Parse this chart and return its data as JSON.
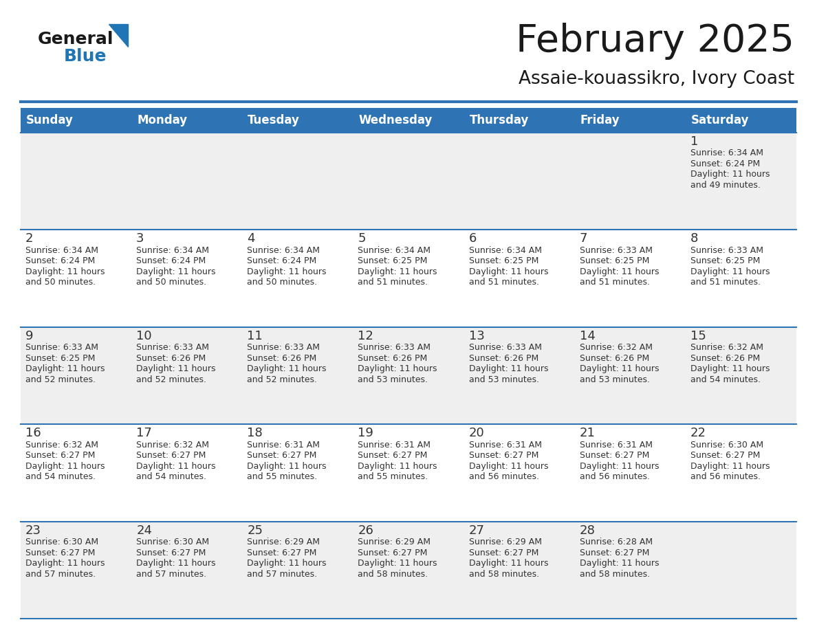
{
  "title": "February 2025",
  "subtitle": "Assaie-kouassikro, Ivory Coast",
  "header_bg_color": "#2E74B5",
  "header_text_color": "#FFFFFF",
  "day_names": [
    "Sunday",
    "Monday",
    "Tuesday",
    "Wednesday",
    "Thursday",
    "Friday",
    "Saturday"
  ],
  "grid_line_color": "#2E74B5",
  "cell_bg_white": "#FFFFFF",
  "cell_bg_gray": "#EFEFEF",
  "day_num_color": "#333333",
  "info_text_color": "#333333",
  "title_color": "#1a1a1a",
  "subtitle_color": "#1a1a1a",
  "logo_color_general": "#1a1a1a",
  "logo_color_blue": "#2076B4",
  "logo_triangle_color": "#2076B4",
  "calendar_data": [
    [
      null,
      null,
      null,
      null,
      null,
      null,
      {
        "day": 1,
        "sunrise": "6:34 AM",
        "sunset": "6:24 PM",
        "dl1": "Daylight: 11 hours",
        "dl2": "and 49 minutes."
      }
    ],
    [
      {
        "day": 2,
        "sunrise": "6:34 AM",
        "sunset": "6:24 PM",
        "dl1": "Daylight: 11 hours",
        "dl2": "and 50 minutes."
      },
      {
        "day": 3,
        "sunrise": "6:34 AM",
        "sunset": "6:24 PM",
        "dl1": "Daylight: 11 hours",
        "dl2": "and 50 minutes."
      },
      {
        "day": 4,
        "sunrise": "6:34 AM",
        "sunset": "6:24 PM",
        "dl1": "Daylight: 11 hours",
        "dl2": "and 50 minutes."
      },
      {
        "day": 5,
        "sunrise": "6:34 AM",
        "sunset": "6:25 PM",
        "dl1": "Daylight: 11 hours",
        "dl2": "and 51 minutes."
      },
      {
        "day": 6,
        "sunrise": "6:34 AM",
        "sunset": "6:25 PM",
        "dl1": "Daylight: 11 hours",
        "dl2": "and 51 minutes."
      },
      {
        "day": 7,
        "sunrise": "6:33 AM",
        "sunset": "6:25 PM",
        "dl1": "Daylight: 11 hours",
        "dl2": "and 51 minutes."
      },
      {
        "day": 8,
        "sunrise": "6:33 AM",
        "sunset": "6:25 PM",
        "dl1": "Daylight: 11 hours",
        "dl2": "and 51 minutes."
      }
    ],
    [
      {
        "day": 9,
        "sunrise": "6:33 AM",
        "sunset": "6:25 PM",
        "dl1": "Daylight: 11 hours",
        "dl2": "and 52 minutes."
      },
      {
        "day": 10,
        "sunrise": "6:33 AM",
        "sunset": "6:26 PM",
        "dl1": "Daylight: 11 hours",
        "dl2": "and 52 minutes."
      },
      {
        "day": 11,
        "sunrise": "6:33 AM",
        "sunset": "6:26 PM",
        "dl1": "Daylight: 11 hours",
        "dl2": "and 52 minutes."
      },
      {
        "day": 12,
        "sunrise": "6:33 AM",
        "sunset": "6:26 PM",
        "dl1": "Daylight: 11 hours",
        "dl2": "and 53 minutes."
      },
      {
        "day": 13,
        "sunrise": "6:33 AM",
        "sunset": "6:26 PM",
        "dl1": "Daylight: 11 hours",
        "dl2": "and 53 minutes."
      },
      {
        "day": 14,
        "sunrise": "6:32 AM",
        "sunset": "6:26 PM",
        "dl1": "Daylight: 11 hours",
        "dl2": "and 53 minutes."
      },
      {
        "day": 15,
        "sunrise": "6:32 AM",
        "sunset": "6:26 PM",
        "dl1": "Daylight: 11 hours",
        "dl2": "and 54 minutes."
      }
    ],
    [
      {
        "day": 16,
        "sunrise": "6:32 AM",
        "sunset": "6:27 PM",
        "dl1": "Daylight: 11 hours",
        "dl2": "and 54 minutes."
      },
      {
        "day": 17,
        "sunrise": "6:32 AM",
        "sunset": "6:27 PM",
        "dl1": "Daylight: 11 hours",
        "dl2": "and 54 minutes."
      },
      {
        "day": 18,
        "sunrise": "6:31 AM",
        "sunset": "6:27 PM",
        "dl1": "Daylight: 11 hours",
        "dl2": "and 55 minutes."
      },
      {
        "day": 19,
        "sunrise": "6:31 AM",
        "sunset": "6:27 PM",
        "dl1": "Daylight: 11 hours",
        "dl2": "and 55 minutes."
      },
      {
        "day": 20,
        "sunrise": "6:31 AM",
        "sunset": "6:27 PM",
        "dl1": "Daylight: 11 hours",
        "dl2": "and 56 minutes."
      },
      {
        "day": 21,
        "sunrise": "6:31 AM",
        "sunset": "6:27 PM",
        "dl1": "Daylight: 11 hours",
        "dl2": "and 56 minutes."
      },
      {
        "day": 22,
        "sunrise": "6:30 AM",
        "sunset": "6:27 PM",
        "dl1": "Daylight: 11 hours",
        "dl2": "and 56 minutes."
      }
    ],
    [
      {
        "day": 23,
        "sunrise": "6:30 AM",
        "sunset": "6:27 PM",
        "dl1": "Daylight: 11 hours",
        "dl2": "and 57 minutes."
      },
      {
        "day": 24,
        "sunrise": "6:30 AM",
        "sunset": "6:27 PM",
        "dl1": "Daylight: 11 hours",
        "dl2": "and 57 minutes."
      },
      {
        "day": 25,
        "sunrise": "6:29 AM",
        "sunset": "6:27 PM",
        "dl1": "Daylight: 11 hours",
        "dl2": "and 57 minutes."
      },
      {
        "day": 26,
        "sunrise": "6:29 AM",
        "sunset": "6:27 PM",
        "dl1": "Daylight: 11 hours",
        "dl2": "and 58 minutes."
      },
      {
        "day": 27,
        "sunrise": "6:29 AM",
        "sunset": "6:27 PM",
        "dl1": "Daylight: 11 hours",
        "dl2": "and 58 minutes."
      },
      {
        "day": 28,
        "sunrise": "6:28 AM",
        "sunset": "6:27 PM",
        "dl1": "Daylight: 11 hours",
        "dl2": "and 58 minutes."
      },
      null
    ]
  ]
}
